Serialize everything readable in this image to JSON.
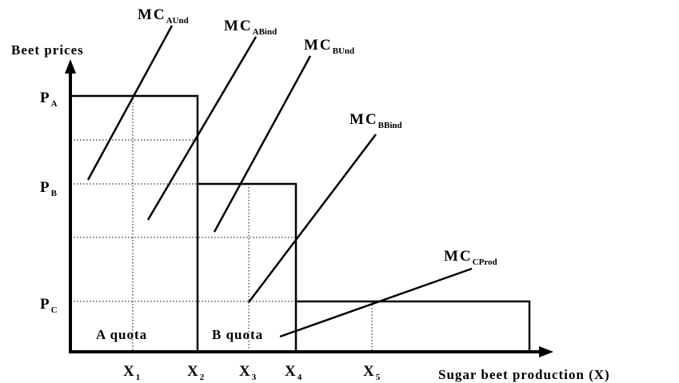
{
  "axes": {
    "y_label": "Beet prices",
    "x_label": "Sugar beet production (X)"
  },
  "quotas": [
    "A quota",
    "B quota"
  ],
  "prices": [
    {
      "main": "P",
      "sub": "A"
    },
    {
      "main": "P",
      "sub": "B"
    },
    {
      "main": "P",
      "sub": "C"
    }
  ],
  "quantities": [
    {
      "main": "X",
      "sub": "1"
    },
    {
      "main": "X",
      "sub": "2"
    },
    {
      "main": "X",
      "sub": "3"
    },
    {
      "main": "X",
      "sub": "4"
    },
    {
      "main": "X",
      "sub": "5"
    }
  ],
  "mc_curves": [
    {
      "main": "MC",
      "sub": "AUnd"
    },
    {
      "main": "MC",
      "sub": "ABind"
    },
    {
      "main": "MC",
      "sub": "BUnd"
    },
    {
      "main": "MC",
      "sub": "BBind"
    },
    {
      "main": "MC",
      "sub": "CProd"
    }
  ]
}
